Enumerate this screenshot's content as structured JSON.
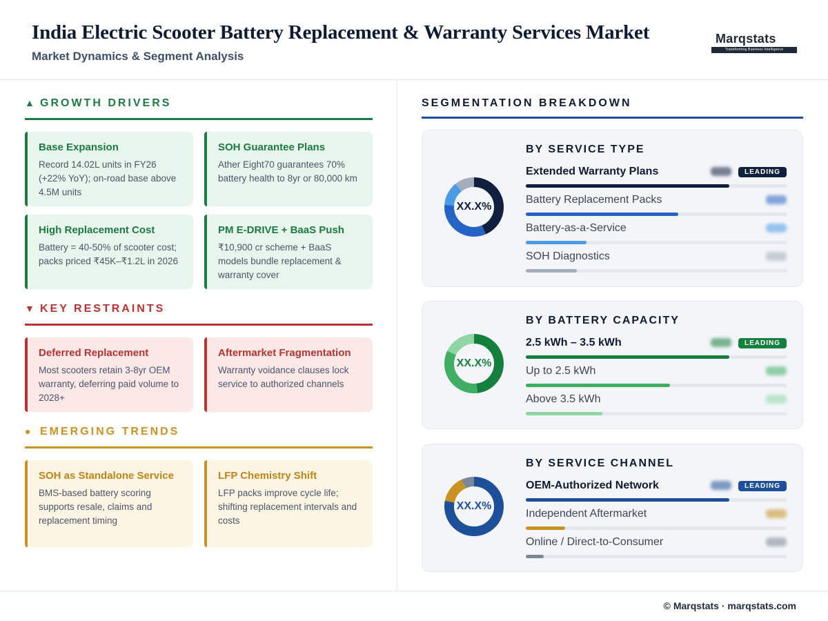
{
  "header": {
    "title": "India Electric Scooter Battery Replacement & Warranty Services Market",
    "subtitle": "Market Dynamics & Segment Analysis",
    "logo_word": "Marqstats",
    "logo_tagline": "Transforming Business Intelligence"
  },
  "drivers": {
    "heading": "GROWTH DRIVERS",
    "icon": "triangle-up-icon",
    "color": "#1c7a42",
    "cards": [
      {
        "title": "Base Expansion",
        "body": "Record 14.02L units in FY26 (+22% YoY); on-road base above 4.5M units"
      },
      {
        "title": "SOH Guarantee Plans",
        "body": "Ather Eight70 guarantees 70% battery health to 8yr or 80,000 km"
      },
      {
        "title": "High Replacement Cost",
        "body": "Battery = 40-50% of scooter cost; packs priced ₹45K–₹1.2L in 2026"
      },
      {
        "title": "PM E-DRIVE + BaaS Push",
        "body": "₹10,900 cr scheme + BaaS models bundle replacement & warranty cover"
      }
    ]
  },
  "restraints": {
    "heading": "KEY RESTRAINTS",
    "icon": "triangle-down-icon",
    "color": "#b83232",
    "cards": [
      {
        "title": "Deferred Replacement",
        "body": "Most scooters retain 3-8yr OEM warranty, deferring paid volume to 2028+"
      },
      {
        "title": "Aftermarket Fragmentation",
        "body": "Warranty voidance clauses lock service to authorized channels"
      }
    ]
  },
  "trends": {
    "heading": "EMERGING TRENDS",
    "icon": "circle-icon",
    "color": "#c99222",
    "cards": [
      {
        "title": "SOH as Standalone Service",
        "body": "BMS-based battery scoring supports resale, claims and replacement timing"
      },
      {
        "title": "LFP Chemistry Shift",
        "body": "LFP packs improve cycle life; shifting replacement intervals and costs"
      }
    ]
  },
  "segmentation": {
    "heading": "SEGMENTATION BREAKDOWN",
    "leading_label": "LEADING",
    "panels": [
      {
        "title": "BY SERVICE TYPE",
        "center_label": "XX.X%",
        "accent": "#0f1f3d",
        "rows": [
          {
            "name": "Extended Warranty Plans",
            "share": 0.4,
            "color": "#0f1f3d"
          },
          {
            "name": "Battery Replacement Packs",
            "share": 0.3,
            "color": "#2563c4"
          },
          {
            "name": "Battery-as-a-Service",
            "share": 0.12,
            "color": "#4c9be8"
          },
          {
            "name": "SOH Diagnostics",
            "share": 0.1,
            "color": "#a3adbb"
          }
        ]
      },
      {
        "title": "BY BATTERY CAPACITY",
        "center_label": "XX.X%",
        "accent": "#15803d",
        "rows": [
          {
            "name": "2.5 kWh – 3.5 kWh",
            "share": 0.48,
            "color": "#15803d"
          },
          {
            "name": "Up to 2.5 kWh",
            "share": 0.34,
            "color": "#3fae64"
          },
          {
            "name": "Above 3.5 kWh",
            "share": 0.18,
            "color": "#8fd6a5"
          }
        ]
      },
      {
        "title": "BY SERVICE CHANNEL",
        "center_label": "XX.X%",
        "accent": "#1e4f99",
        "rows": [
          {
            "name": "OEM-Authorized Network",
            "share": 0.78,
            "color": "#1e4f99"
          },
          {
            "name": "Independent Aftermarket",
            "share": 0.15,
            "color": "#c99222"
          },
          {
            "name": "Online / Direct-to-Consumer",
            "share": 0.07,
            "color": "#7b8798"
          }
        ]
      }
    ]
  },
  "footer": "© Marqstats · marqstats.com"
}
